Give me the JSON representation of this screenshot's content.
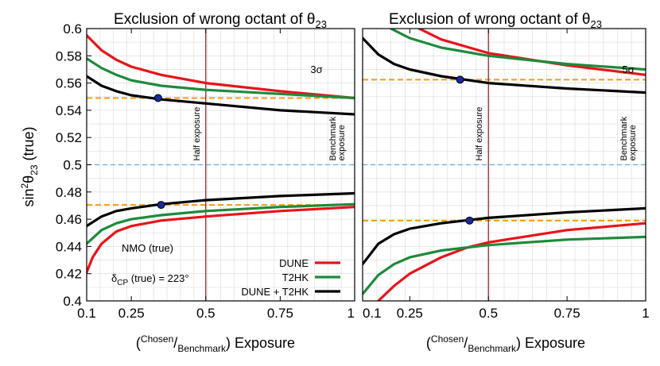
{
  "chart_data": [
    {
      "type": "line",
      "title": "Exclusion of wrong octant of θ23",
      "title_main": "Exclusion of wrong octant of θ",
      "title_sub": "23",
      "significance_label": "3σ",
      "xlabel": "(Chosen/Benchmark) Exposure",
      "ylabel": "sin²θ23 (true)",
      "xlim": [
        0.1,
        1
      ],
      "ylim": [
        0.4,
        0.6
      ],
      "x_ticks": [
        "0.1",
        "0.25",
        "0.5",
        "0.75",
        "1"
      ],
      "y_ticks": [
        "0.4",
        "0.42",
        "0.44",
        "0.46",
        "0.48",
        "0.5",
        "0.52",
        "0.54",
        "0.56",
        "0.58",
        "0.6"
      ],
      "grid": true,
      "vertical_lines": [
        {
          "x": 0.5,
          "label": "Half exposure"
        },
        {
          "x": 1.0,
          "label_line1": "Benchmark",
          "label_line2": "exposure"
        }
      ],
      "hline_max_mixing": 0.5,
      "hline_thresholds": [
        0.549,
        0.4705
      ],
      "markers": [
        {
          "x": 0.34,
          "y": 0.549
        },
        {
          "x": 0.35,
          "y": 0.4705
        }
      ],
      "annotations": {
        "hypothesis": "NMO (true)",
        "delta_label": "δ",
        "delta_sub": "CP",
        "delta_value": " (true) = 223°"
      },
      "legend": {
        "position": "bottom-right",
        "entries": [
          {
            "label": "DUNE",
            "color": "#e8141a"
          },
          {
            "label": "T2HK",
            "color": "#1e8a3c"
          },
          {
            "label": "DUNE + T2HK",
            "color": "#000000"
          }
        ]
      },
      "series": [
        {
          "name": "DUNE",
          "color": "#e8141a",
          "x": [
            0.1,
            0.15,
            0.2,
            0.25,
            0.35,
            0.5,
            0.75,
            1.0
          ],
          "y": [
            0.595,
            0.584,
            0.577,
            0.572,
            0.566,
            0.56,
            0.554,
            0.549
          ]
        },
        {
          "name": "DUNE",
          "color": "#e8141a",
          "x": [
            0.1,
            0.12,
            0.15,
            0.2,
            0.25,
            0.35,
            0.5,
            0.75,
            1.0
          ],
          "y": [
            0.421,
            0.432,
            0.442,
            0.451,
            0.455,
            0.459,
            0.462,
            0.466,
            0.469
          ]
        },
        {
          "name": "T2HK",
          "color": "#1e8a3c",
          "x": [
            0.1,
            0.15,
            0.2,
            0.25,
            0.35,
            0.5,
            0.75,
            1.0
          ],
          "y": [
            0.578,
            0.571,
            0.566,
            0.562,
            0.558,
            0.555,
            0.552,
            0.549
          ]
        },
        {
          "name": "T2HK",
          "color": "#1e8a3c",
          "x": [
            0.1,
            0.15,
            0.2,
            0.25,
            0.35,
            0.5,
            0.75,
            1.0
          ],
          "y": [
            0.442,
            0.452,
            0.457,
            0.46,
            0.463,
            0.466,
            0.469,
            0.471
          ]
        },
        {
          "name": "DUNE + T2HK",
          "color": "#000000",
          "x": [
            0.1,
            0.15,
            0.2,
            0.25,
            0.35,
            0.5,
            0.75,
            1.0
          ],
          "y": [
            0.565,
            0.558,
            0.554,
            0.551,
            0.548,
            0.545,
            0.54,
            0.537
          ]
        },
        {
          "name": "DUNE + T2HK",
          "color": "#000000",
          "x": [
            0.1,
            0.15,
            0.2,
            0.25,
            0.35,
            0.5,
            0.75,
            1.0
          ],
          "y": [
            0.455,
            0.462,
            0.466,
            0.468,
            0.471,
            0.474,
            0.477,
            0.479
          ]
        }
      ]
    },
    {
      "type": "line",
      "title": "Exclusion of wrong octant of θ23",
      "title_main": "Exclusion of wrong octant of θ",
      "title_sub": "23",
      "significance_label": "5σ",
      "xlabel": "(Chosen/Benchmark) Exposure",
      "xlim": [
        0.1,
        1
      ],
      "ylim": [
        0.4,
        0.6
      ],
      "x_ticks": [
        "0.1",
        "0.25",
        "0.5",
        "0.75",
        "1"
      ],
      "grid": true,
      "vertical_lines": [
        {
          "x": 0.5,
          "label": "Half exposure"
        },
        {
          "x": 1.0,
          "label_line1": "Benchmark",
          "label_line2": "exposure"
        }
      ],
      "hline_max_mixing": 0.5,
      "hline_thresholds": [
        0.5625,
        0.459
      ],
      "markers": [
        {
          "x": 0.41,
          "y": 0.5625
        },
        {
          "x": 0.44,
          "y": 0.459
        }
      ],
      "series": [
        {
          "name": "DUNE",
          "color": "#e8141a",
          "x": [
            0.28,
            0.35,
            0.5,
            0.75,
            1.0
          ],
          "y": [
            0.6,
            0.592,
            0.582,
            0.573,
            0.566
          ]
        },
        {
          "name": "DUNE",
          "color": "#e8141a",
          "x": [
            0.15,
            0.2,
            0.25,
            0.35,
            0.43,
            0.5,
            0.75,
            1.0
          ],
          "y": [
            0.4,
            0.411,
            0.42,
            0.432,
            0.439,
            0.443,
            0.452,
            0.457
          ]
        },
        {
          "name": "T2HK",
          "color": "#1e8a3c",
          "x": [
            0.19,
            0.25,
            0.35,
            0.5,
            0.75,
            1.0
          ],
          "y": [
            0.6,
            0.593,
            0.586,
            0.58,
            0.574,
            0.57
          ]
        },
        {
          "name": "T2HK",
          "color": "#1e8a3c",
          "x": [
            0.1,
            0.15,
            0.2,
            0.25,
            0.35,
            0.5,
            0.75,
            1.0
          ],
          "y": [
            0.405,
            0.419,
            0.427,
            0.432,
            0.437,
            0.441,
            0.445,
            0.447
          ]
        },
        {
          "name": "DUNE + T2HK",
          "color": "#000000",
          "x": [
            0.1,
            0.15,
            0.2,
            0.25,
            0.35,
            0.5,
            0.75,
            1.0
          ],
          "y": [
            0.593,
            0.581,
            0.574,
            0.57,
            0.565,
            0.56,
            0.556,
            0.553
          ]
        },
        {
          "name": "DUNE + T2HK",
          "color": "#000000",
          "x": [
            0.1,
            0.15,
            0.2,
            0.25,
            0.35,
            0.5,
            0.75,
            1.0
          ],
          "y": [
            0.427,
            0.442,
            0.449,
            0.453,
            0.457,
            0.461,
            0.465,
            0.468
          ]
        }
      ]
    }
  ]
}
